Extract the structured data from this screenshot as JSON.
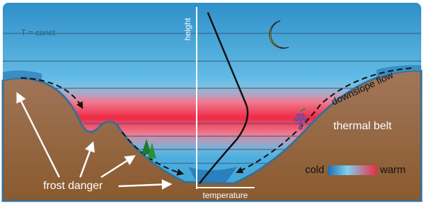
{
  "diagram": {
    "labels": {
      "isotherm": "T = const",
      "height_axis": "height",
      "temperature_axis": "temperature",
      "downslope": "downslope flow",
      "thermal_belt": "thermal belt",
      "frost": "frost danger",
      "legend_cold": "cold",
      "legend_warm": "warm"
    }
  }
}
